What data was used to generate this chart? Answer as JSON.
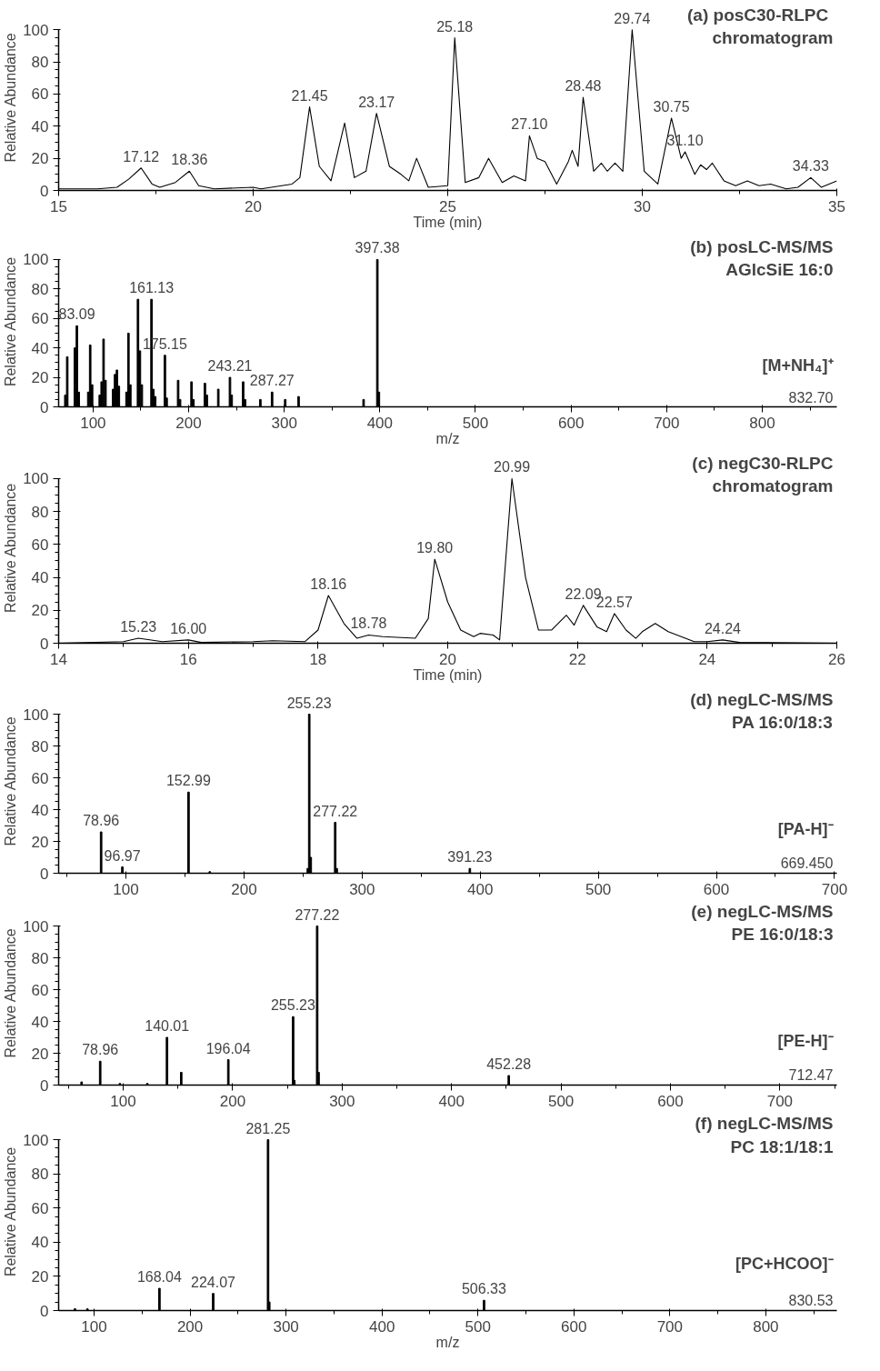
{
  "chart_data": [
    {
      "type": "line",
      "title": "(a)  posC30-RLPC\nchromatogram",
      "xlabel": "Time (min)",
      "ylabel": "Relative Abundance",
      "color": "#000000",
      "line_style": "solid",
      "x": [
        15,
        16,
        16.5,
        16.8,
        17.12,
        17.4,
        17.6,
        18,
        18.36,
        18.6,
        19,
        20,
        20.2,
        21,
        21.2,
        21.45,
        21.7,
        22,
        22.35,
        22.6,
        22.9,
        23.17,
        23.5,
        23.8,
        24,
        24.2,
        24.5,
        25,
        25.18,
        25.45,
        25.8,
        26.05,
        26.4,
        26.7,
        27,
        27.1,
        27.3,
        27.5,
        27.8,
        28.1,
        28.2,
        28.35,
        28.48,
        28.75,
        28.95,
        29.1,
        29.3,
        29.5,
        29.74,
        30.05,
        30.4,
        30.75,
        31.0,
        31.1,
        31.35,
        31.5,
        31.65,
        31.8,
        32.1,
        32.4,
        32.7,
        33,
        33.3,
        33.7,
        34,
        34.33,
        34.6,
        35
      ],
      "values": [
        1,
        1,
        2,
        7,
        14,
        4,
        2,
        5,
        12,
        3,
        1,
        2,
        1,
        4,
        8,
        52,
        15,
        6,
        42,
        8,
        12,
        48,
        15,
        10,
        6,
        20,
        2,
        3,
        95,
        5,
        8,
        20,
        5,
        9,
        6,
        34,
        20,
        18,
        4,
        18,
        25,
        15,
        58,
        12,
        17,
        12,
        17,
        12,
        100,
        12,
        4,
        45,
        20,
        24,
        10,
        16,
        13,
        17,
        6,
        3,
        6,
        3,
        4,
        1,
        2,
        8,
        2,
        6
      ],
      "xlim": [
        15,
        35
      ],
      "xticks": [
        15,
        20,
        25,
        30,
        35
      ],
      "ylim": [
        0,
        100
      ],
      "yticks": [
        0,
        20,
        40,
        60,
        80,
        100
      ],
      "annotations": [
        {
          "text": "17.12",
          "x": 17.12,
          "y": 14
        },
        {
          "text": "18.36",
          "x": 18.36,
          "y": 12
        },
        {
          "text": "21.45",
          "x": 21.45,
          "y": 52
        },
        {
          "text": "23.17",
          "x": 23.17,
          "y": 48
        },
        {
          "text": "25.18",
          "x": 25.18,
          "y": 95
        },
        {
          "text": "27.10",
          "x": 27.1,
          "y": 34
        },
        {
          "text": "28.48",
          "x": 28.48,
          "y": 58
        },
        {
          "text": "29.74",
          "x": 29.74,
          "y": 100
        },
        {
          "text": "30.75",
          "x": 30.75,
          "y": 45
        },
        {
          "text": "31.10",
          "x": 31.1,
          "y": 24
        },
        {
          "text": "34.33",
          "x": 34.33,
          "y": 8
        }
      ]
    },
    {
      "type": "bar",
      "title": "(b) posLC-MS/MS\nAGlcSiE 16:0",
      "xlabel": "m/z",
      "ylabel": "Relative Abundance",
      "color": "#000000",
      "x": [
        71,
        73,
        81,
        83.09,
        85,
        95,
        97,
        99,
        107,
        109,
        111,
        113,
        121,
        123,
        125,
        127,
        135,
        137,
        139,
        147,
        149,
        151,
        161.13,
        163,
        165,
        175.15,
        177,
        189,
        191,
        203,
        205,
        217,
        219,
        231,
        243.21,
        245,
        257,
        259,
        275,
        287.27,
        301,
        315,
        383,
        397.38,
        399
      ],
      "values": [
        8,
        34,
        40,
        55,
        10,
        10,
        42,
        15,
        8,
        17,
        46,
        18,
        12,
        22,
        25,
        14,
        10,
        50,
        15,
        73,
        38,
        15,
        73,
        12,
        7,
        35,
        6,
        18,
        5,
        17,
        5,
        16,
        8,
        12,
        20,
        8,
        17,
        5,
        5,
        10,
        5,
        7,
        5,
        100,
        10
      ],
      "xlim": [
        64,
        878
      ],
      "xticks": [
        100,
        200,
        300,
        400,
        500,
        600,
        700,
        800
      ],
      "ylim": [
        0,
        100
      ],
      "yticks": [
        0,
        20,
        40,
        60,
        80,
        100
      ],
      "annotations": [
        "[M+NH₄]⁺",
        "832.70",
        {
          "text": "83.09",
          "x": 83.09,
          "y": 55
        },
        {
          "text": "161.13",
          "x": 161.13,
          "y": 73
        },
        {
          "text": "175.15",
          "x": 175.15,
          "y": 35
        },
        {
          "text": "243.21",
          "x": 243.21,
          "y": 20
        },
        {
          "text": "287.27",
          "x": 287.27,
          "y": 10
        },
        {
          "text": "397.38",
          "x": 397.38,
          "y": 100
        }
      ]
    },
    {
      "type": "line",
      "title": "(c) negC30-RLPC\nchromatogram",
      "xlabel": "Time (min)",
      "ylabel": "Relative Abundance",
      "color": "#000000",
      "line_style": "solid",
      "x": [
        14,
        15,
        15.23,
        15.6,
        16,
        16.2,
        17,
        17.3,
        17.8,
        18,
        18.16,
        18.4,
        18.6,
        18.78,
        19,
        19.5,
        19.7,
        19.8,
        20,
        20.2,
        20.4,
        20.5,
        20.7,
        20.8,
        20.99,
        21.2,
        21.4,
        21.6,
        21.83,
        21.95,
        22.09,
        22.3,
        22.45,
        22.57,
        22.75,
        22.9,
        23.0,
        23.2,
        23.4,
        23.6,
        23.8,
        24,
        24.24,
        24.5,
        26
      ],
      "values": [
        0,
        1,
        3,
        1,
        2,
        0.5,
        1,
        1.5,
        1,
        8,
        29,
        12,
        3,
        5,
        4,
        3,
        15,
        51,
        25,
        8,
        4,
        6,
        5,
        2,
        100,
        40,
        8,
        8,
        17,
        11,
        23,
        10,
        7,
        18,
        8,
        3,
        7,
        12,
        7,
        4,
        1,
        1,
        2,
        0.5,
        0
      ],
      "xlim": [
        14,
        26
      ],
      "xticks": [
        14,
        16,
        18,
        20,
        22,
        24,
        26
      ],
      "ylim": [
        0,
        100
      ],
      "yticks": [
        0,
        20,
        40,
        60,
        80,
        100
      ],
      "annotations": [
        {
          "text": "15.23",
          "x": 15.23,
          "y": 3
        },
        {
          "text": "16.00",
          "x": 16,
          "y": 2
        },
        {
          "text": "18.16",
          "x": 18.16,
          "y": 29
        },
        {
          "text": "18.78",
          "x": 18.78,
          "y": 5
        },
        {
          "text": "19.80",
          "x": 19.8,
          "y": 51
        },
        {
          "text": "20.99",
          "x": 20.99,
          "y": 100
        },
        {
          "text": "22.09",
          "x": 22.09,
          "y": 23
        },
        {
          "text": "22.57",
          "x": 22.57,
          "y": 18
        },
        {
          "text": "24.24",
          "x": 24.24,
          "y": 2
        }
      ]
    },
    {
      "type": "bar",
      "title": "(d) negLC-MS/MS\nPA 16:0/18:3",
      "ylabel": "Relative Abundance",
      "color": "#000000",
      "x": [
        78.96,
        96.97,
        152.99,
        171,
        254,
        255.23,
        256.5,
        277.22,
        278.5,
        391.23
      ],
      "values": [
        26,
        4,
        51,
        1,
        3,
        100,
        10,
        32,
        3,
        3
      ],
      "xlim": [
        43,
        702
      ],
      "xticks": [
        100,
        200,
        300,
        400,
        500,
        600,
        700
      ],
      "ylim": [
        0,
        100
      ],
      "yticks": [
        0,
        20,
        40,
        60,
        80,
        100
      ],
      "annotations": [
        "[PA-H]⁻",
        "669.450",
        {
          "text": "78.96",
          "x": 78.96,
          "y": 26
        },
        {
          "text": "96.97",
          "x": 96.97,
          "y": 4
        },
        {
          "text": "152.99",
          "x": 152.99,
          "y": 51
        },
        {
          "text": "255.23",
          "x": 255.23,
          "y": 100
        },
        {
          "text": "277.22",
          "x": 277.22,
          "y": 32
        },
        {
          "text": "391.23",
          "x": 391.23,
          "y": 3
        }
      ]
    },
    {
      "type": "bar",
      "title": "(e) negLC-MS/MS\nPE 16:0/18:3",
      "ylabel": "Relative Abundance",
      "color": "#000000",
      "x": [
        62,
        78.96,
        97,
        122,
        140.01,
        153,
        196.04,
        255.23,
        256.3,
        277.22,
        278.5,
        452.28
      ],
      "values": [
        2,
        15,
        1,
        1,
        30,
        8,
        16,
        43,
        3,
        100,
        8,
        6
      ],
      "xlim": [
        41,
        752
      ],
      "xticks": [
        100,
        200,
        300,
        400,
        500,
        600,
        700
      ],
      "ylim": [
        0,
        100
      ],
      "yticks": [
        0,
        20,
        40,
        60,
        80,
        100
      ],
      "annotations": [
        "[PE-H]⁻",
        "712.47",
        {
          "text": "78.96",
          "x": 78.96,
          "y": 15
        },
        {
          "text": "140.01",
          "x": 140.01,
          "y": 30
        },
        {
          "text": "196.04",
          "x": 196.04,
          "y": 16
        },
        {
          "text": "255.23",
          "x": 255.23,
          "y": 43
        },
        {
          "text": "277.22",
          "x": 277.22,
          "y": 100
        },
        {
          "text": "452.28",
          "x": 452.28,
          "y": 6
        }
      ]
    },
    {
      "type": "bar",
      "title": "(f) negLC-MS/MS\nPC 18:1/18:1",
      "xlabel": "m/z",
      "ylabel": "Relative Abundance",
      "color": "#000000",
      "x": [
        80,
        93,
        168.04,
        224.07,
        281.25,
        282.5,
        506.33
      ],
      "values": [
        1,
        1,
        13,
        10,
        100,
        5,
        6
      ],
      "xlim": [
        63,
        874
      ],
      "xticks": [
        100,
        200,
        300,
        400,
        500,
        600,
        700,
        800
      ],
      "ylim": [
        0,
        100
      ],
      "yticks": [
        0,
        20,
        40,
        60,
        80,
        100
      ],
      "annotations": [
        "[PC+HCOO]⁻",
        "830.53",
        {
          "text": "168.04",
          "x": 168.04,
          "y": 13
        },
        {
          "text": "224.07",
          "x": 224.07,
          "y": 10
        },
        {
          "text": "281.25",
          "x": 281.25,
          "y": 100
        },
        {
          "text": "506.33",
          "x": 506.33,
          "y": 6
        }
      ]
    }
  ]
}
